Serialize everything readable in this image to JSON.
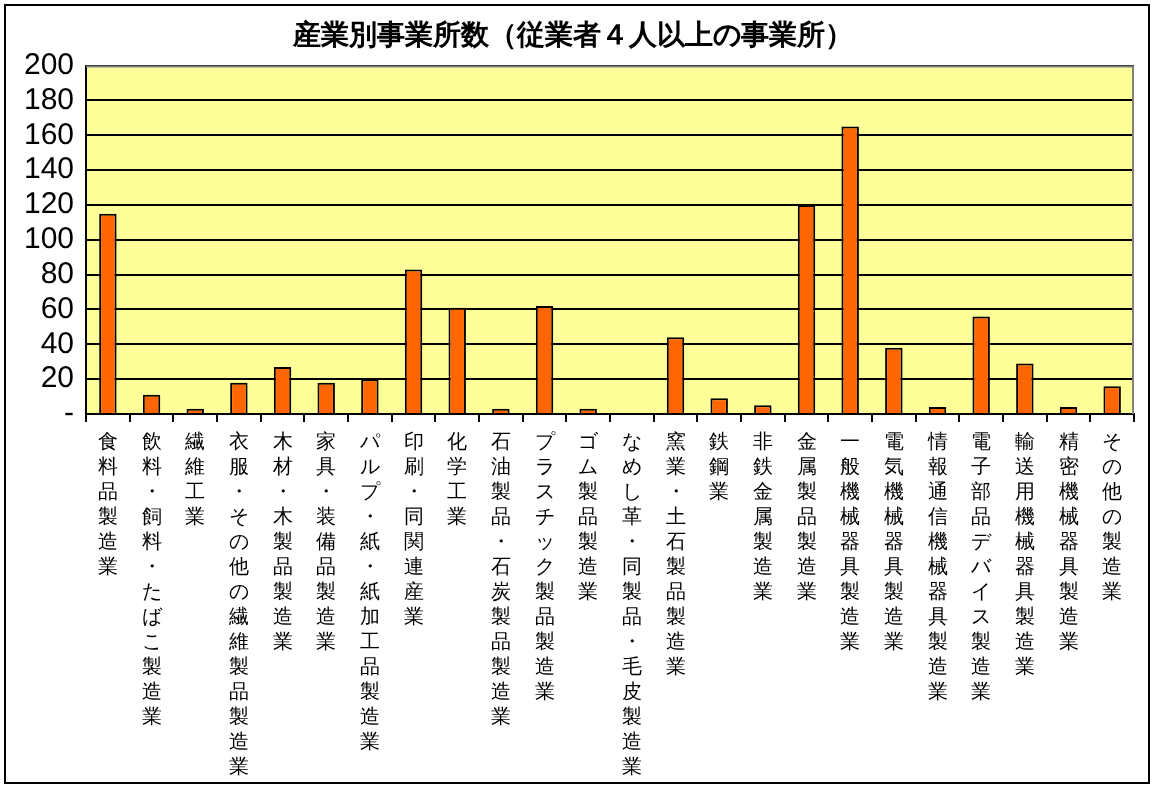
{
  "chart_data": {
    "type": "bar",
    "title": "産業別事業所数（従業者４人以上の事業所）",
    "categories": [
      "食料品製造業",
      "飲料・飼料・たばこ製造業",
      "繊維工業",
      "衣服・その他の繊維製品製造業",
      "木材・木製品製造業",
      "家具・装備品製造業",
      "パルプ・紙・紙加工品製造業",
      "印刷・同関連産業",
      "化学工業",
      "石油製品・石炭製品製造業",
      "プラスチック製品製造業",
      "ゴム製品製造業",
      "なめし革・同製品・毛皮製造業",
      "窯業・土石製品製造業",
      "鉄鋼業",
      "非鉄金属製造業",
      "金属製品製造業",
      "一般機械器具製造業",
      "電気機械器具製造業",
      "情報通信機械器具製造業",
      "電子部品デバイス製造業",
      "輸送用機械器具製造業",
      "精密機械器具製造業",
      "その他の製造業"
    ],
    "values": [
      115,
      11,
      3,
      18,
      27,
      18,
      20,
      83,
      61,
      3,
      62,
      3,
      0,
      44,
      9,
      5,
      120,
      165,
      38,
      4,
      56,
      29,
      4,
      16
    ],
    "color": "#ff6600",
    "ylim": [
      0,
      200
    ],
    "yticks": [
      {
        "value": 0,
        "label": "-"
      },
      20,
      40,
      60,
      80,
      100,
      120,
      140,
      160,
      180,
      200
    ],
    "grid": "y",
    "legend": false
  }
}
